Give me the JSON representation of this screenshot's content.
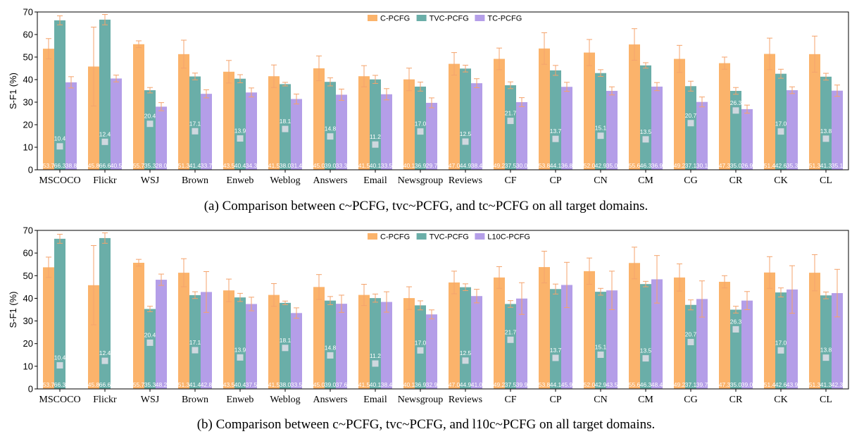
{
  "colors": {
    "C-PCFG": "#fbb36b",
    "TVC-PCFG": "#6aaea8",
    "TC-PCFG": "#b49ee8",
    "L10C-PCFG": "#b49ee8",
    "error_bar": "#f4a36c",
    "marker": "#cfd8df",
    "axis": "#000000"
  },
  "chart_data": [
    {
      "type": "bar",
      "caption": "(a) Comparison between c~PCFG, tvc~PCFG, and tc~PCFG on all target domains.",
      "ylabel": "S-F1 (%)",
      "ylim": [
        0,
        70
      ],
      "yticks": [
        0,
        10,
        20,
        30,
        40,
        50,
        60,
        70
      ],
      "legend_position": "top-center",
      "categories": [
        "MSCOCO",
        "Flickr",
        "WSJ",
        "Brown",
        "Enweb",
        "Weblog",
        "Answers",
        "Email",
        "Newsgroup",
        "Reviews",
        "CF",
        "CP",
        "CN",
        "CM",
        "CG",
        "CR",
        "CK",
        "CL"
      ],
      "series": [
        {
          "name": "C-PCFG",
          "values": [
            53.7,
            45.8,
            55.7,
            51.3,
            43.5,
            41.5,
            45.0,
            41.5,
            40.1,
            47.0,
            49.2,
            53.8,
            52.0,
            55.6,
            49.2,
            47.3,
            51.4,
            51.3
          ],
          "errors": [
            4.5,
            17.5,
            1.5,
            6.2,
            5.0,
            5.0,
            5.5,
            4.7,
            5.0,
            5.0,
            4.8,
            7.0,
            5.8,
            7.0,
            6.0,
            2.7,
            7.0,
            8.0
          ]
        },
        {
          "name": "TVC-PCFG",
          "values": [
            66.3,
            66.6,
            35.3,
            41.4,
            40.4,
            38.0,
            39.0,
            40.1,
            36.9,
            44.9,
            37.5,
            44.1,
            42.9,
            46.3,
            37.1,
            35.0,
            42.6,
            41.3
          ],
          "errors": [
            2.0,
            2.3,
            1.2,
            1.5,
            1.8,
            0.8,
            1.8,
            1.8,
            2.0,
            1.5,
            1.5,
            2.2,
            1.5,
            1.2,
            2.2,
            1.5,
            2.0,
            1.5
          ]
        },
        {
          "name": "TC-PCFG",
          "values": [
            38.8,
            40.5,
            28.0,
            33.7,
            34.3,
            31.4,
            33.3,
            33.5,
            29.7,
            38.4,
            30.0,
            36.8,
            35.0,
            36.9,
            30.1,
            26.9,
            35.3,
            35.1
          ],
          "errors": [
            2.5,
            1.5,
            1.8,
            1.8,
            2.0,
            2.2,
            2.5,
            2.5,
            2.2,
            2.0,
            2.0,
            2.0,
            1.8,
            1.8,
            2.2,
            1.8,
            1.5,
            2.5
          ]
        }
      ],
      "markers": [
        10.4,
        12.4,
        20.4,
        17.1,
        13.9,
        18.1,
        14.8,
        11.2,
        17.0,
        12.5,
        21.7,
        13.7,
        15.1,
        13.5,
        20.7,
        26.3,
        17.0,
        13.8
      ],
      "value_labels": [
        [
          "53.7",
          "66.3",
          "38.8"
        ],
        [
          "45.8",
          "66.6",
          "40.5"
        ],
        [
          "55.7",
          "35.3",
          "28.0"
        ],
        [
          "51.3",
          "41.4",
          "33.7"
        ],
        [
          "43.5",
          "40.4",
          "34.3"
        ],
        [
          "41.5",
          "38.0",
          "31.4"
        ],
        [
          "45.0",
          "39.0",
          "33.3"
        ],
        [
          "41.5",
          "40.1",
          "33.5"
        ],
        [
          "40.1",
          "36.9",
          "29.7"
        ],
        [
          "47.0",
          "44.9",
          "38.4"
        ],
        [
          "49.2",
          "37.5",
          "30.0"
        ],
        [
          "53.8",
          "44.1",
          "36.8"
        ],
        [
          "52.0",
          "42.9",
          "35.0"
        ],
        [
          "55.6",
          "46.3",
          "36.9"
        ],
        [
          "49.2",
          "37.1",
          "30.1"
        ],
        [
          "47.3",
          "35.0",
          "26.9"
        ],
        [
          "51.4",
          "42.6",
          "35.3"
        ],
        [
          "51.3",
          "41.3",
          "35.1"
        ]
      ],
      "marker_labels": [
        "10.4",
        "12.4",
        "20.4",
        "17.1",
        "13.9",
        "18.1",
        "14.8",
        "11.2",
        "17.0",
        "12.5",
        "21.7",
        "13.7",
        "15.1",
        "13.5",
        "20.7",
        "26.3",
        "17.0",
        "13.8"
      ]
    },
    {
      "type": "bar",
      "caption": "(b) Comparison between c~PCFG, tvc~PCFG, and l10c~PCFG on all target domains.",
      "ylabel": "S-F1 (%)",
      "ylim": [
        0,
        70
      ],
      "yticks": [
        0,
        10,
        20,
        30,
        40,
        50,
        60,
        70
      ],
      "legend_position": "top-center",
      "categories": [
        "MSCOCO",
        "Flickr",
        "WSJ",
        "Brown",
        "Enweb",
        "Weblog",
        "Answers",
        "Email",
        "Newsgroup",
        "Reviews",
        "CF",
        "CP",
        "CN",
        "CM",
        "CG",
        "CR",
        "CK",
        "CL"
      ],
      "series": [
        {
          "name": "C-PCFG",
          "values": [
            53.7,
            45.8,
            55.7,
            51.3,
            43.5,
            41.5,
            45.0,
            41.5,
            40.1,
            47.0,
            49.2,
            53.8,
            52.0,
            55.6,
            49.2,
            47.3,
            51.4,
            51.3
          ],
          "errors": [
            4.5,
            17.5,
            1.5,
            6.2,
            5.0,
            5.0,
            5.5,
            4.7,
            5.0,
            5.0,
            4.8,
            7.0,
            5.8,
            7.0,
            6.0,
            2.7,
            7.0,
            8.0
          ]
        },
        {
          "name": "TVC-PCFG",
          "values": [
            66.3,
            66.6,
            35.3,
            41.4,
            40.4,
            38.0,
            39.0,
            40.1,
            36.9,
            44.9,
            37.5,
            44.1,
            42.9,
            46.3,
            37.1,
            35.0,
            42.6,
            41.3
          ],
          "errors": [
            2.0,
            2.3,
            1.2,
            1.5,
            1.8,
            0.8,
            1.8,
            1.8,
            2.0,
            1.5,
            1.5,
            2.2,
            1.5,
            1.2,
            2.2,
            1.5,
            2.0,
            1.5
          ]
        },
        {
          "name": "L10C-PCFG",
          "values": [
            null,
            null,
            48.2,
            42.8,
            37.5,
            33.5,
            37.6,
            38.4,
            32.9,
            41.0,
            39.9,
            45.9,
            43.5,
            48.4,
            39.7,
            39.0,
            43.9,
            42.3
          ],
          "errors": [
            null,
            null,
            2.5,
            9.0,
            3.0,
            2.3,
            3.8,
            4.5,
            2.0,
            3.0,
            7.0,
            10.0,
            8.5,
            10.5,
            8.0,
            4.0,
            10.5,
            10.5
          ]
        }
      ],
      "markers": [
        10.4,
        12.4,
        20.4,
        17.1,
        13.9,
        18.1,
        14.8,
        11.2,
        17.0,
        12.5,
        21.7,
        13.7,
        15.1,
        13.5,
        20.7,
        26.3,
        17.0,
        13.8
      ],
      "value_labels": [
        [
          "53.7",
          "66.3",
          ""
        ],
        [
          "45.8",
          "66.6",
          ""
        ],
        [
          "55.7",
          "35.3",
          "48.2"
        ],
        [
          "51.3",
          "41.4",
          "42.8"
        ],
        [
          "43.5",
          "40.4",
          "37.5"
        ],
        [
          "41.5",
          "38.0",
          "33.5"
        ],
        [
          "45.0",
          "39.0",
          "37.6"
        ],
        [
          "41.5",
          "40.1",
          "38.4"
        ],
        [
          "40.1",
          "36.9",
          "32.9"
        ],
        [
          "47.0",
          "44.9",
          "41.0"
        ],
        [
          "49.2",
          "37.5",
          "39.9"
        ],
        [
          "53.8",
          "44.1",
          "45.9"
        ],
        [
          "52.0",
          "42.9",
          "43.5"
        ],
        [
          "55.6",
          "46.3",
          "48.4"
        ],
        [
          "49.2",
          "37.1",
          "39.7"
        ],
        [
          "47.3",
          "35.0",
          "39.0"
        ],
        [
          "51.4",
          "42.6",
          "43.9"
        ],
        [
          "51.3",
          "41.3",
          "42.3"
        ]
      ],
      "marker_labels": [
        "10.4",
        "12.4",
        "20.4",
        "17.1",
        "13.9",
        "18.1",
        "14.8",
        "11.2",
        "17.0",
        "12.5",
        "21.7",
        "13.7",
        "15.1",
        "13.5",
        "20.7",
        "26.3",
        "17.0",
        "13.8"
      ]
    }
  ]
}
